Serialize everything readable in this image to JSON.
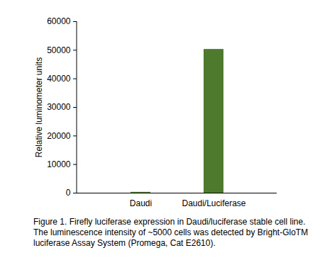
{
  "chart_data": {
    "type": "bar",
    "caption": "Figure 1. Firefly luciferase expression in Daudi/luciferase stable cell line. The luminescence intensity of ~5000 cells was detected by Bright-GloTM luciferase Assay System (Promega, Cat E2610).",
    "y_label": "Relative luminometer units",
    "categories": [
      "Daudi",
      "Daudi/Luciferase"
    ],
    "values": [
      300,
      50300
    ],
    "color": "#4e7a2e",
    "ylim": [
      0,
      60000
    ],
    "yticks": [
      0,
      10000,
      20000,
      30000,
      40000,
      50000,
      60000
    ],
    "grid": false
  }
}
